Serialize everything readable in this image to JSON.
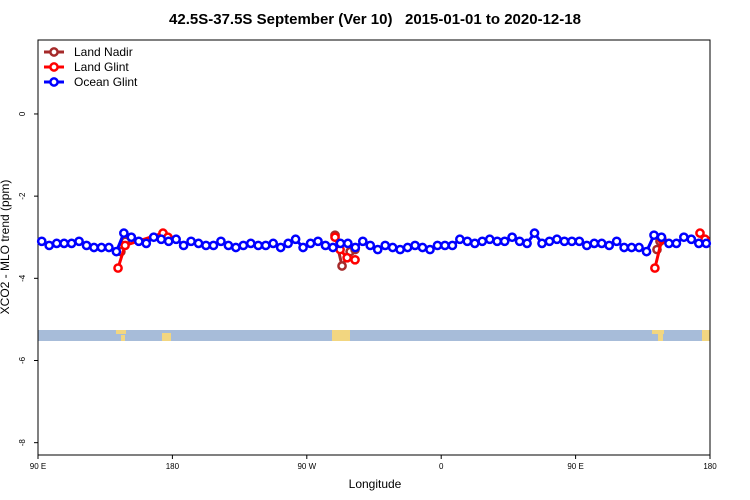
{
  "chart_data": {
    "type": "line",
    "title": "42.5S-37.5S September (Ver 10)   2015-01-01 to 2020-12-18",
    "xlabel": "Longitude",
    "ylabel": "XCO2 - MLO trend (ppm)",
    "xlim": [
      90,
      540
    ],
    "ylim": [
      -8.3,
      1.8
    ],
    "xticks": [
      {
        "value": 90,
        "label": "90 E"
      },
      {
        "value": 180,
        "label": "180"
      },
      {
        "value": 270,
        "label": "90 W"
      },
      {
        "value": 360,
        "label": "0"
      },
      {
        "value": 450,
        "label": "90 E"
      },
      {
        "value": 540,
        "label": "180"
      }
    ],
    "yticks": [
      0,
      -2,
      -4,
      -6,
      -8
    ],
    "legend": "top-left",
    "series": [
      {
        "name": "Land Nadir",
        "color": "#a52a2a",
        "x": [
          145.5,
          148.5,
          null,
          288.9,
          293.6,
          299,
          302.3,
          null,
          504.5,
          506.5
        ],
        "values": [
          -3.35,
          -3.1,
          null,
          -2.95,
          -3.7,
          -3.35,
          -3.3,
          null,
          -3.3,
          -3.1
        ]
      },
      {
        "name": "Land Glint",
        "color": "#ff0000",
        "x": [
          143.6,
          148.3,
          173.7,
          177,
          null,
          288.9,
          292.3,
          297,
          302.3,
          null,
          503.1,
          507.8,
          null,
          533.3,
          536.7
        ],
        "values": [
          -3.75,
          -3.2,
          -2.9,
          -3.0,
          null,
          -3.0,
          -3.3,
          -3.5,
          -3.55,
          null,
          -3.75,
          -3.05,
          null,
          -2.9,
          -3.05
        ]
      },
      {
        "name": "Ocean Glint",
        "color": "#0000ff",
        "x": [
          92.5,
          97.5,
          102.5,
          107.5,
          112.5,
          117.5,
          122.5,
          127.5,
          132.5,
          137.5,
          142.5,
          147.5,
          152.5,
          157.5,
          162.5,
          167.5,
          172.5,
          177.5,
          182.5,
          187.5,
          192.5,
          197.5,
          202.5,
          207.5,
          212.5,
          217.5,
          222.5,
          227.5,
          232.5,
          237.5,
          242.5,
          247.5,
          252.5,
          257.5,
          262.5,
          267.5,
          272.5,
          277.5,
          282.5,
          287.5,
          292.5,
          297.5,
          302.5,
          307.5,
          312.5,
          317.5,
          322.5,
          327.5,
          332.5,
          337.5,
          342.5,
          347.5,
          352.5,
          357.5,
          362.5,
          367.5,
          372.5,
          377.5,
          382.5,
          387.5,
          392.5,
          397.5,
          402.5,
          407.5,
          412.5,
          417.5,
          422.5,
          427.5,
          432.5,
          437.5,
          442.5,
          447.5,
          452.5,
          457.5,
          462.5,
          467.5,
          472.5,
          477.5,
          482.5,
          487.5,
          492.5,
          497.5,
          502.5,
          507.5,
          512.5,
          517.5,
          522.5,
          527.5,
          532.5,
          537.5
        ],
        "values": [
          -3.1,
          -3.2,
          -3.15,
          -3.15,
          -3.15,
          -3.1,
          -3.2,
          -3.25,
          -3.25,
          -3.25,
          -3.35,
          -2.9,
          -3.0,
          -3.1,
          -3.15,
          -3.0,
          -3.05,
          -3.1,
          -3.05,
          -3.2,
          -3.1,
          -3.15,
          -3.2,
          -3.2,
          -3.1,
          -3.2,
          -3.25,
          -3.2,
          -3.15,
          -3.2,
          -3.2,
          -3.15,
          -3.25,
          -3.15,
          -3.05,
          -3.25,
          -3.15,
          -3.1,
          -3.2,
          -3.25,
          -3.15,
          -3.15,
          -3.25,
          -3.1,
          -3.2,
          -3.3,
          -3.2,
          -3.25,
          -3.3,
          -3.25,
          -3.2,
          -3.25,
          -3.3,
          -3.2,
          -3.2,
          -3.2,
          -3.05,
          -3.1,
          -3.15,
          -3.1,
          -3.05,
          -3.1,
          -3.1,
          -3.0,
          -3.1,
          -3.15,
          -2.9,
          -3.15,
          -3.1,
          -3.05,
          -3.1,
          -3.1,
          -3.1,
          -3.2,
          -3.15,
          -3.15,
          -3.2,
          -3.1,
          -3.25,
          -3.25,
          -3.25,
          -3.35,
          -2.95,
          -3.0,
          -3.15,
          -3.15,
          -3.0,
          -3.05,
          -3.15,
          -3.15
        ]
      }
    ]
  }
}
